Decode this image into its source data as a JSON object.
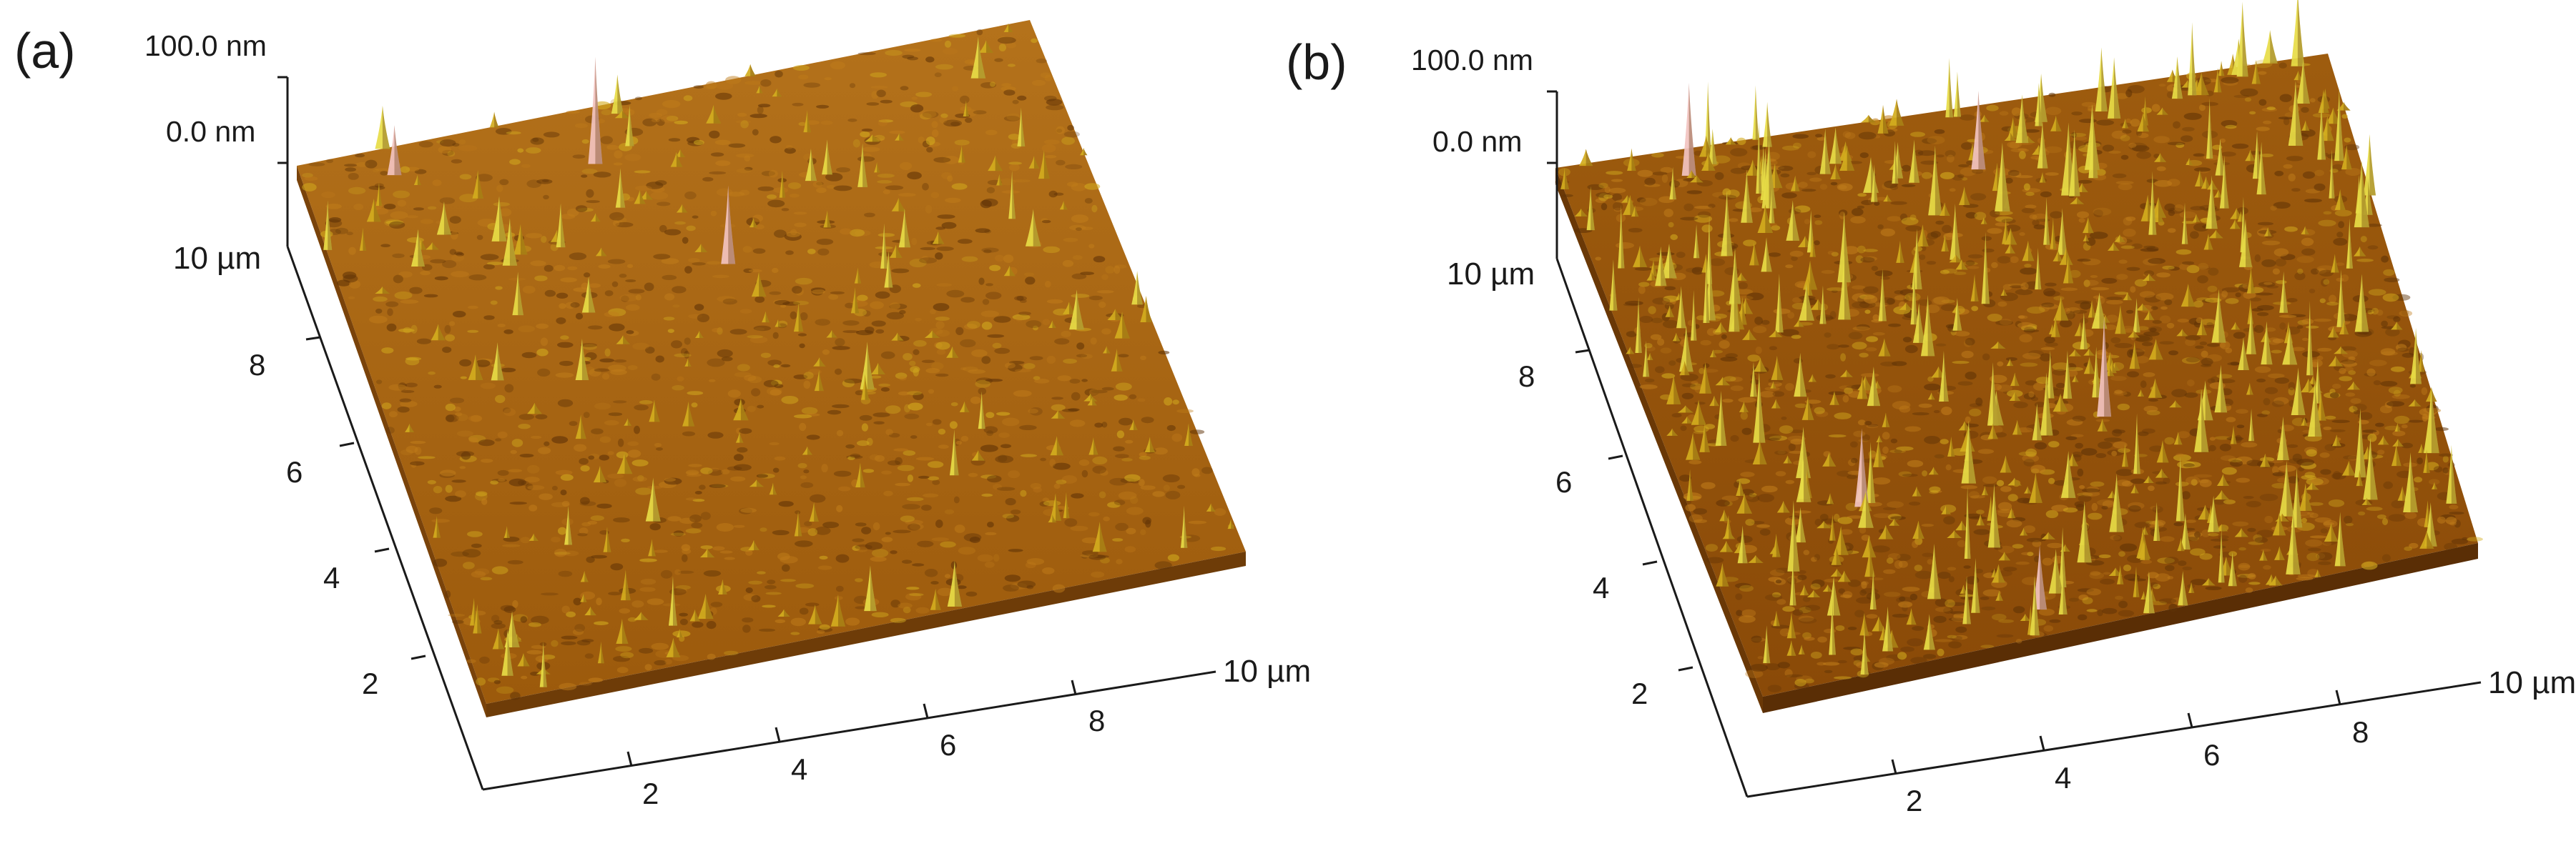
{
  "panels": [
    {
      "tag": "(a)",
      "z_top": "100.0 nm",
      "z_zero": "0.0 nm",
      "y_axis": {
        "max": "10 µm",
        "ticks": [
          "8",
          "6",
          "4",
          "2"
        ]
      },
      "x_axis": {
        "max": "10 µm",
        "ticks": [
          "2",
          "4",
          "6",
          "8"
        ]
      },
      "surface": {
        "peak_density": "low",
        "roughness": "fine"
      }
    },
    {
      "tag": "(b)",
      "z_top": "100.0 nm",
      "z_zero": "0.0 nm",
      "y_axis": {
        "max": "10 µm",
        "ticks": [
          "8",
          "6",
          "4",
          "2"
        ]
      },
      "x_axis": {
        "max": "10 µm",
        "ticks": [
          "2",
          "4",
          "6",
          "8"
        ]
      },
      "surface": {
        "peak_density": "high",
        "roughness": "coarse"
      }
    }
  ],
  "colors": {
    "surface_base": "#a9660f",
    "surface_dark": "#5e3206",
    "peak_mid": "#d3ac1e",
    "peak_light": "#e7dc46",
    "peak_tip": "#f2c3c0",
    "axis": "#1a1a1a"
  }
}
